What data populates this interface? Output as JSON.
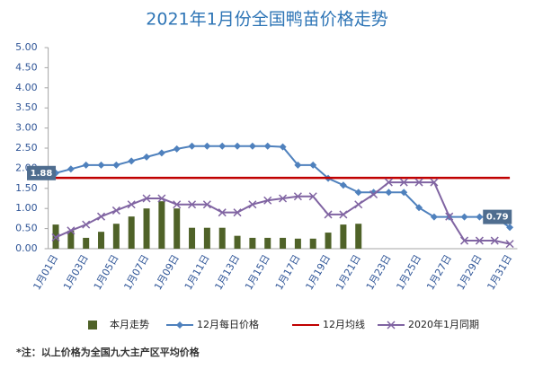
{
  "chart_data": {
    "type": "combo",
    "title": "2021年1月份全国鸭苗价格走势",
    "footnote": "*注：以上价格为全国九大主产区平均价格",
    "categories": [
      "1月01日",
      null,
      "1月03日",
      null,
      "1月05日",
      null,
      "1月07日",
      null,
      "1月09日",
      null,
      "1月11日",
      null,
      "1月13日",
      null,
      "1月15日",
      null,
      "1月17日",
      null,
      "1月19日",
      null,
      "1月21日",
      null,
      "1月23日",
      null,
      "1月25日",
      null,
      "1月27日",
      null,
      "1月29日",
      null,
      "1月31日"
    ],
    "ylim": [
      0,
      5
    ],
    "yticks": [
      {
        "value": 0,
        "label": "0.00"
      },
      {
        "value": 0.5,
        "label": "0.50"
      },
      {
        "value": 1,
        "label": "1.00"
      },
      {
        "value": 1.5,
        "label": "1.50"
      },
      {
        "value": 2,
        "label": "2.00"
      },
      {
        "value": 2.5,
        "label": "2.50"
      },
      {
        "value": 3,
        "label": "3.00"
      },
      {
        "value": 3.5,
        "label": "3.50"
      },
      {
        "value": 4,
        "label": "4.00"
      },
      {
        "value": 4.5,
        "label": "4.50"
      },
      {
        "value": 5,
        "label": "5.00"
      }
    ],
    "grid": false,
    "series": [
      {
        "name": "本月走势",
        "kind": "bar",
        "color": "#4f6228",
        "values": [
          0.6,
          0.45,
          0.27,
          0.42,
          0.62,
          0.8,
          1.0,
          1.18,
          1.0,
          0.52,
          0.52,
          0.52,
          0.32,
          0.27,
          0.27,
          0.27,
          0.25,
          0.25,
          0.4,
          0.6,
          0.62,
          null,
          null,
          null,
          null,
          null,
          null,
          null,
          null,
          null,
          null
        ]
      },
      {
        "name": "12月每日价格",
        "kind": "line",
        "marker": "diamond",
        "color": "#4f81bd",
        "values": [
          1.88,
          1.98,
          2.08,
          2.08,
          2.08,
          2.18,
          2.28,
          2.38,
          2.48,
          2.55,
          2.55,
          2.55,
          2.55,
          2.55,
          2.55,
          2.53,
          2.08,
          2.08,
          1.75,
          1.58,
          1.4,
          1.4,
          1.4,
          1.4,
          1.02,
          0.79,
          0.79,
          0.79,
          0.79,
          0.79,
          0.53
        ],
        "value_labels": [
          "1.88",
          null,
          null,
          null,
          null,
          null,
          null,
          null,
          null,
          null,
          null,
          null,
          null,
          null,
          null,
          null,
          null,
          null,
          null,
          null,
          null,
          null,
          null,
          null,
          null,
          null,
          null,
          null,
          null,
          "0.79",
          null
        ]
      },
      {
        "name": "12月均线",
        "kind": "line",
        "marker": "none",
        "color": "#c00000",
        "values": [
          1.76,
          1.76,
          1.76,
          1.76,
          1.76,
          1.76,
          1.76,
          1.76,
          1.76,
          1.76,
          1.76,
          1.76,
          1.76,
          1.76,
          1.76,
          1.76,
          1.76,
          1.76,
          1.76,
          1.76,
          1.76,
          1.76,
          1.76,
          1.76,
          1.76,
          1.76,
          1.76,
          1.76,
          1.76,
          1.76,
          1.76
        ]
      },
      {
        "name": "2020年1月同期",
        "kind": "line",
        "marker": "x",
        "color": "#8064a2",
        "values": [
          0.28,
          0.45,
          0.6,
          0.8,
          0.95,
          1.1,
          1.25,
          1.25,
          1.1,
          1.1,
          1.1,
          0.9,
          0.9,
          1.1,
          1.2,
          1.25,
          1.3,
          1.3,
          0.85,
          0.85,
          1.1,
          1.35,
          1.65,
          1.65,
          1.65,
          1.65,
          0.8,
          0.2,
          0.2,
          0.2,
          0.12
        ]
      }
    ]
  }
}
